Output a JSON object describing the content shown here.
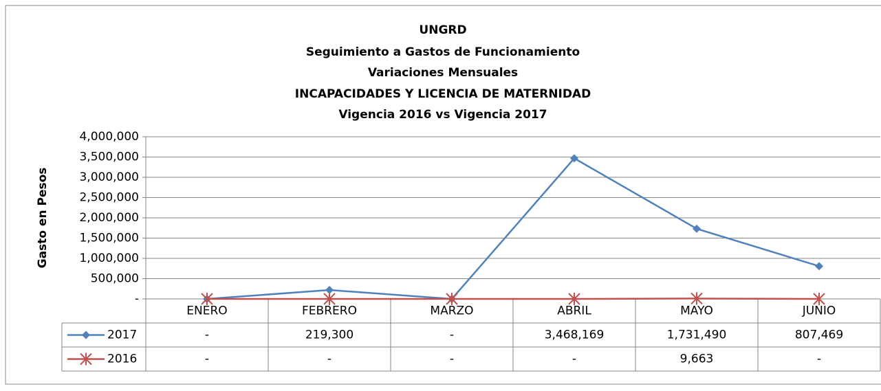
{
  "chart_data": {
    "type": "line",
    "title": [
      "UNGRD",
      "Seguimiento a Gastos de Funcionamiento",
      "Variaciones Mensuales",
      "INCAPACIDADES Y LICENCIA DE MATERNIDAD",
      "Vigencia 2016 vs Vigencia 2017"
    ],
    "y_label": "Gasto en Pesos",
    "categories": [
      "ENERO",
      "FEBRERO",
      "MARZO",
      "ABRIL",
      "MAYO",
      "JUNIO"
    ],
    "series": [
      {
        "name": "2017",
        "color": "#4f81bd",
        "marker": "diamond",
        "values": [
          0,
          219300,
          0,
          3468169,
          1731490,
          807469
        ],
        "value_labels": [
          "-",
          "219,300",
          "-",
          "3,468,169",
          "1,731,490",
          "807,469"
        ]
      },
      {
        "name": "2016",
        "color": "#c0504d",
        "marker": "star",
        "values": [
          0,
          0,
          0,
          0,
          9663,
          0
        ],
        "value_labels": [
          "-",
          "-",
          "-",
          "-",
          "9,663",
          "-"
        ]
      }
    ],
    "ylim": [
      0,
      4000000
    ],
    "yticks": [
      {
        "value": 0,
        "label": "-"
      },
      {
        "value": 500000,
        "label": "500,000"
      },
      {
        "value": 1000000,
        "label": "1,000,000"
      },
      {
        "value": 1500000,
        "label": "1,500,000"
      },
      {
        "value": 2000000,
        "label": "2,000,000"
      },
      {
        "value": 2500000,
        "label": "2,500,000"
      },
      {
        "value": 3000000,
        "label": "3,000,000"
      },
      {
        "value": 3500000,
        "label": "3,500,000"
      },
      {
        "value": 4000000,
        "label": "4,000,000"
      }
    ],
    "grid": true
  }
}
